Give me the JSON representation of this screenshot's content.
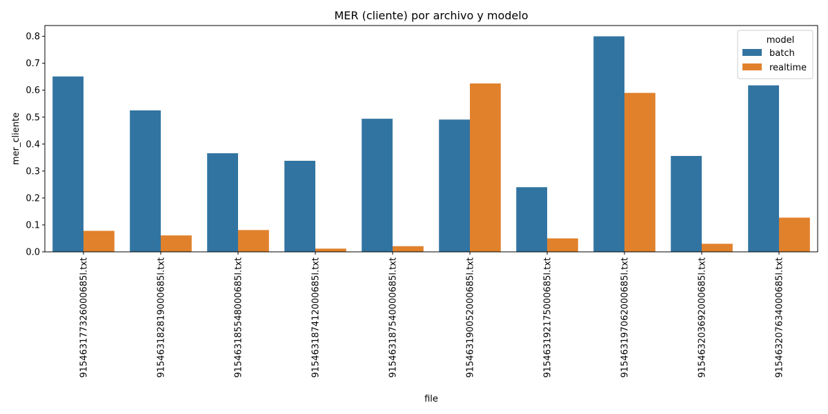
{
  "chart_data": {
    "type": "bar",
    "title": "MER (cliente) por archivo y modelo",
    "xlabel": "file",
    "ylabel": "mer_cliente",
    "ylim": [
      0,
      0.84
    ],
    "yticks": [
      0.0,
      0.1,
      0.2,
      0.3,
      0.4,
      0.5,
      0.6,
      0.7,
      0.8
    ],
    "ytick_labels": [
      "0.0",
      "0.1",
      "0.2",
      "0.3",
      "0.4",
      "0.5",
      "0.6",
      "0.7",
      "0.8"
    ],
    "grid": false,
    "legend": {
      "title": "model",
      "placement": "top-right"
    },
    "categories": [
      "915463177326000685l.txt",
      "915463182819000685l.txt",
      "915463185548000685l.txt",
      "915463187412000685l.txt",
      "915463187540000685l.txt",
      "915463190052000685l.txt",
      "915463192175000685l.txt",
      "915463197062000685l.txt",
      "915463203692000685l.txt",
      "915463207634000685l.txt"
    ],
    "series": [
      {
        "name": "batch",
        "color": "#3274a1",
        "values": [
          0.651,
          0.525,
          0.366,
          0.338,
          0.494,
          0.491,
          0.24,
          0.8,
          0.356,
          0.618
        ]
      },
      {
        "name": "realtime",
        "color": "#e1812c",
        "values": [
          0.078,
          0.061,
          0.081,
          0.012,
          0.021,
          0.625,
          0.05,
          0.59,
          0.03,
          0.127
        ]
      }
    ]
  }
}
